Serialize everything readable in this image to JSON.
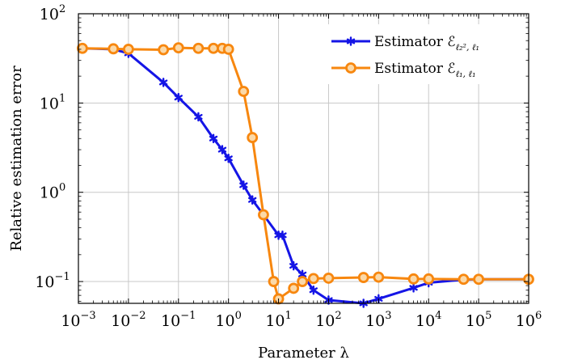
{
  "chart_data": {
    "type": "line",
    "xscale": "log",
    "yscale": "log",
    "xlabel": "Parameter λ",
    "ylabel": "Relative estimation error",
    "xlim": [
      0.001,
      1000000
    ],
    "ylim": [
      0.057,
      100
    ],
    "grid": true,
    "legend_position": "top-right",
    "x_ticks": [
      {
        "value": 0.001,
        "base": "10",
        "exp": "−3"
      },
      {
        "value": 0.01,
        "base": "10",
        "exp": "−2"
      },
      {
        "value": 0.1,
        "base": "10",
        "exp": "−1"
      },
      {
        "value": 1,
        "base": "10",
        "exp": "0"
      },
      {
        "value": 10,
        "base": "10",
        "exp": "1"
      },
      {
        "value": 100,
        "base": "10",
        "exp": "2"
      },
      {
        "value": 1000,
        "base": "10",
        "exp": "3"
      },
      {
        "value": 10000,
        "base": "10",
        "exp": "4"
      },
      {
        "value": 100000,
        "base": "10",
        "exp": "5"
      },
      {
        "value": 1000000,
        "base": "10",
        "exp": "6"
      }
    ],
    "y_ticks": [
      {
        "value": 0.1,
        "base": "10",
        "exp": "−1"
      },
      {
        "value": 1,
        "base": "10",
        "exp": "0"
      },
      {
        "value": 10,
        "base": "10",
        "exp": "1"
      },
      {
        "value": 100,
        "base": "10",
        "exp": "2"
      }
    ],
    "series": [
      {
        "name": "Estimator ℰ",
        "name_subscript": "ℓ₂², ℓ₁",
        "color": "#1515e6",
        "marker": "asterisk",
        "x": [
          0.0012,
          0.005,
          0.01,
          0.05,
          0.1,
          0.25,
          0.5,
          0.75,
          1.0,
          2.0,
          3.0,
          5.0,
          10,
          12,
          20,
          30,
          50,
          100,
          500,
          1000,
          5000,
          10000,
          50000,
          100000,
          1000000
        ],
        "y": [
          41,
          40,
          36,
          17,
          11.5,
          7.0,
          4.0,
          3.0,
          2.4,
          1.2,
          0.82,
          0.56,
          0.33,
          0.33,
          0.15,
          0.12,
          0.08,
          0.062,
          0.057,
          0.064,
          0.085,
          0.097,
          0.105,
          0.106,
          0.106
        ]
      },
      {
        "name": "Estimator ℰ",
        "name_subscript": "ℓ₁, ℓ₁",
        "color": "#f7870f",
        "marker": "circle",
        "x": [
          0.0012,
          0.005,
          0.01,
          0.05,
          0.1,
          0.25,
          0.5,
          0.75,
          1.0,
          2.0,
          3.0,
          5.0,
          8.0,
          10,
          20,
          30,
          50,
          100,
          500,
          1000,
          5000,
          10000,
          50000,
          100000,
          1000000
        ],
        "y": [
          41,
          40.5,
          40,
          39.5,
          41.5,
          41,
          41,
          41,
          40,
          13.5,
          4.1,
          0.56,
          0.1,
          0.064,
          0.084,
          0.1,
          0.108,
          0.109,
          0.111,
          0.112,
          0.107,
          0.107,
          0.106,
          0.106,
          0.106
        ]
      }
    ]
  }
}
